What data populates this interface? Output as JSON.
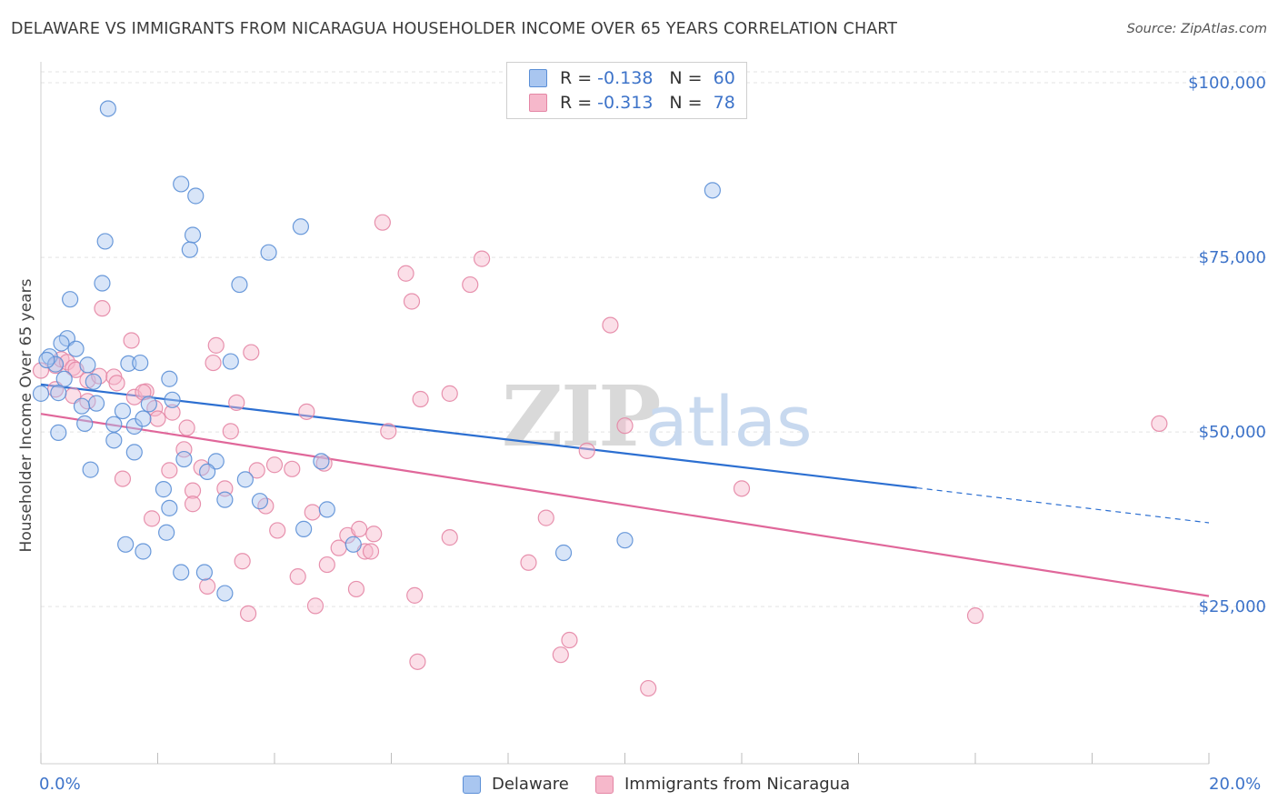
{
  "title": "DELAWARE VS IMMIGRANTS FROM NICARAGUA HOUSEHOLDER INCOME OVER 65 YEARS CORRELATION CHART",
  "source": "Source: ZipAtlas.com",
  "watermark": {
    "zip": "ZIP",
    "atlas": "atlas"
  },
  "colors": {
    "delaware_fill": "#a9c6f0",
    "delaware_stroke": "#5b8fd6",
    "delaware_line": "#2c6fd1",
    "nicaragua_fill": "#f6b8cb",
    "nicaragua_stroke": "#e486a5",
    "nicaragua_line": "#e0679a",
    "accent_text": "#3d73c9"
  },
  "legend": {
    "rows": [
      {
        "r_label": "R =",
        "r_value": "-0.138",
        "n_label": "N =",
        "n_value": "60"
      },
      {
        "r_label": "R =",
        "r_value": "-0.313",
        "n_label": "N =",
        "n_value": "78"
      }
    ]
  },
  "bottom_legend": {
    "series1": "Delaware",
    "series2": "Immigrants from Nicaragua"
  },
  "chart_data": {
    "type": "scatter",
    "title": "DELAWARE VS IMMIGRANTS FROM NICARAGUA HOUSEHOLDER INCOME OVER 65 YEARS CORRELATION CHART",
    "xlabel": "",
    "ylabel": "Householder Income Over 65 years",
    "x_tick_labels": [
      "0.0%",
      "20.0%"
    ],
    "y_tick_labels": [
      "$100,000",
      "$75,000",
      "$50,000",
      "$25,000"
    ],
    "y_ticks": [
      100000,
      75000,
      50000,
      25000
    ],
    "xlim": [
      0,
      20
    ],
    "ylim": [
      2500,
      103000
    ],
    "grid": true,
    "legend_position": "top-center",
    "series": [
      {
        "name": "Delaware",
        "r": -0.138,
        "n": 60,
        "trend": {
          "x0": 0,
          "y0": 56800,
          "x1": 15.0,
          "y1": 42000,
          "dash_x1": 20.0,
          "dash_y1": 37000
        },
        "points": [
          [
            1.15,
            96300
          ],
          [
            2.4,
            85500
          ],
          [
            2.65,
            83800
          ],
          [
            11.5,
            84600
          ],
          [
            1.1,
            77300
          ],
          [
            2.6,
            78200
          ],
          [
            2.55,
            76100
          ],
          [
            4.45,
            79400
          ],
          [
            3.9,
            75700
          ],
          [
            1.05,
            71300
          ],
          [
            3.4,
            71100
          ],
          [
            0.5,
            69000
          ],
          [
            0.45,
            63400
          ],
          [
            0.35,
            62700
          ],
          [
            0.6,
            61900
          ],
          [
            0.15,
            60800
          ],
          [
            0.25,
            59700
          ],
          [
            1.5,
            59800
          ],
          [
            1.7,
            59900
          ],
          [
            3.25,
            60100
          ],
          [
            0.8,
            59600
          ],
          [
            0.4,
            57600
          ],
          [
            0.9,
            57200
          ],
          [
            2.2,
            57600
          ],
          [
            0.3,
            55600
          ],
          [
            0.0,
            55500
          ],
          [
            0.95,
            54100
          ],
          [
            1.85,
            54000
          ],
          [
            2.25,
            54600
          ],
          [
            0.7,
            53700
          ],
          [
            1.4,
            53000
          ],
          [
            0.75,
            51200
          ],
          [
            1.25,
            51100
          ],
          [
            1.6,
            50800
          ],
          [
            1.75,
            51900
          ],
          [
            0.3,
            49900
          ],
          [
            1.25,
            48800
          ],
          [
            1.6,
            47100
          ],
          [
            2.45,
            46100
          ],
          [
            3.0,
            45800
          ],
          [
            4.8,
            45800
          ],
          [
            0.85,
            44600
          ],
          [
            2.85,
            44300
          ],
          [
            3.5,
            43200
          ],
          [
            2.1,
            41800
          ],
          [
            3.15,
            40300
          ],
          [
            3.75,
            40100
          ],
          [
            2.2,
            39100
          ],
          [
            4.9,
            38900
          ],
          [
            4.5,
            36100
          ],
          [
            2.15,
            35600
          ],
          [
            1.45,
            33900
          ],
          [
            1.75,
            32900
          ],
          [
            5.35,
            33900
          ],
          [
            8.95,
            32700
          ],
          [
            10.0,
            34500
          ],
          [
            2.4,
            29900
          ],
          [
            2.8,
            29900
          ],
          [
            3.15,
            26900
          ],
          [
            0.1,
            60300
          ]
        ]
      },
      {
        "name": "Immigrants from Nicaragua",
        "r": -0.313,
        "n": 78,
        "trend": {
          "x0": 0,
          "y0": 52600,
          "x1": 20.0,
          "y1": 26500
        },
        "points": [
          [
            5.85,
            80000
          ],
          [
            7.55,
            74800
          ],
          [
            7.35,
            71100
          ],
          [
            6.25,
            72700
          ],
          [
            6.35,
            68700
          ],
          [
            1.05,
            67700
          ],
          [
            9.75,
            65300
          ],
          [
            1.55,
            63100
          ],
          [
            0.0,
            58800
          ],
          [
            0.25,
            59500
          ],
          [
            0.35,
            60400
          ],
          [
            0.45,
            60000
          ],
          [
            0.55,
            59200
          ],
          [
            0.6,
            58900
          ],
          [
            0.8,
            57400
          ],
          [
            1.0,
            58000
          ],
          [
            1.25,
            57900
          ],
          [
            1.3,
            57000
          ],
          [
            3.0,
            62400
          ],
          [
            3.6,
            61400
          ],
          [
            2.95,
            59900
          ],
          [
            0.25,
            56100
          ],
          [
            0.55,
            55200
          ],
          [
            0.8,
            54400
          ],
          [
            1.6,
            55000
          ],
          [
            1.8,
            55800
          ],
          [
            1.95,
            53400
          ],
          [
            2.25,
            52800
          ],
          [
            2.0,
            51900
          ],
          [
            3.35,
            54200
          ],
          [
            4.55,
            52900
          ],
          [
            6.5,
            54700
          ],
          [
            7.0,
            55500
          ],
          [
            3.25,
            50100
          ],
          [
            5.95,
            50100
          ],
          [
            10.0,
            50900
          ],
          [
            2.5,
            50600
          ],
          [
            9.35,
            47300
          ],
          [
            2.45,
            47500
          ],
          [
            2.75,
            44900
          ],
          [
            4.0,
            45300
          ],
          [
            3.7,
            44500
          ],
          [
            4.3,
            44700
          ],
          [
            4.85,
            45500
          ],
          [
            2.2,
            44500
          ],
          [
            1.4,
            43300
          ],
          [
            1.75,
            55700
          ],
          [
            2.6,
            41600
          ],
          [
            3.15,
            41900
          ],
          [
            2.6,
            39700
          ],
          [
            3.85,
            39400
          ],
          [
            1.9,
            37600
          ],
          [
            4.65,
            38500
          ],
          [
            8.65,
            37700
          ],
          [
            12.0,
            41900
          ],
          [
            19.15,
            51200
          ],
          [
            4.05,
            35900
          ],
          [
            5.25,
            35200
          ],
          [
            5.45,
            36100
          ],
          [
            5.7,
            35400
          ],
          [
            5.55,
            32900
          ],
          [
            5.1,
            33400
          ],
          [
            5.65,
            32900
          ],
          [
            7.0,
            34900
          ],
          [
            3.45,
            31500
          ],
          [
            4.9,
            31000
          ],
          [
            8.35,
            31300
          ],
          [
            4.4,
            29300
          ],
          [
            5.4,
            27500
          ],
          [
            2.85,
            27900
          ],
          [
            6.4,
            26600
          ],
          [
            4.7,
            25100
          ],
          [
            3.55,
            24000
          ],
          [
            16.0,
            23700
          ],
          [
            9.05,
            20200
          ],
          [
            8.9,
            18100
          ],
          [
            6.45,
            17100
          ],
          [
            10.4,
            13300
          ]
        ]
      }
    ]
  }
}
